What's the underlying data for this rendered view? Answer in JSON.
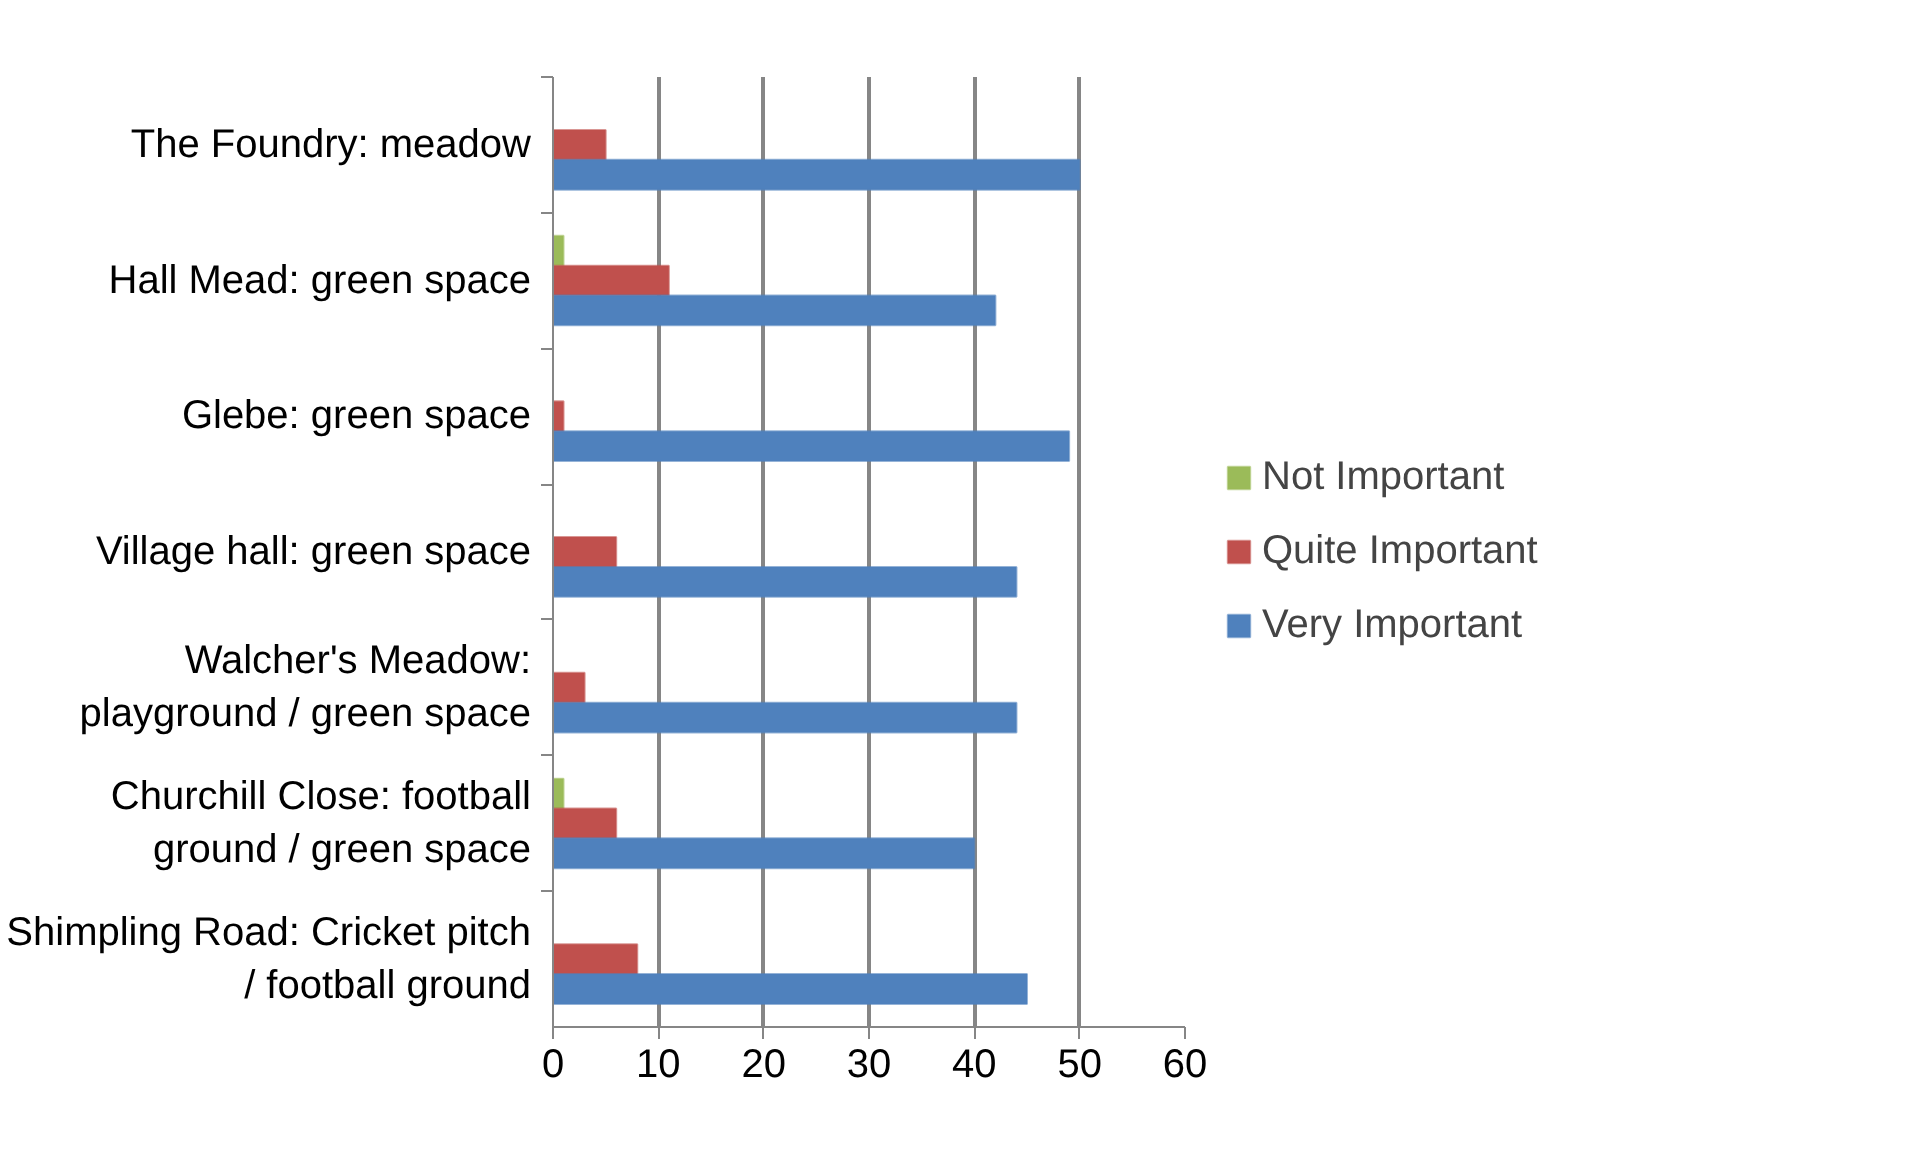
{
  "chart_data": {
    "type": "bar",
    "orientation": "horizontal",
    "categories": [
      "The Foundry: meadow",
      "Hall Mead: green space",
      "Glebe: green space",
      "Village hall: green space",
      "Walcher's Meadow:\nplayground / green space",
      "Churchill Close: football\nground / green space",
      "Shimpling Road: Cricket pitch\n/ football ground"
    ],
    "series": [
      {
        "name": "Not Important",
        "color": "#9bbb59",
        "values": [
          0,
          1,
          0,
          0,
          0,
          1,
          0
        ]
      },
      {
        "name": "Quite Important",
        "color": "#c0504d",
        "values": [
          5,
          11,
          1,
          6,
          3,
          6,
          8
        ]
      },
      {
        "name": "Very Important",
        "color": "#4f81bd",
        "values": [
          50,
          42,
          49,
          44,
          44,
          40,
          45
        ]
      }
    ],
    "xlim": [
      0,
      60
    ],
    "xticks": [
      0,
      10,
      20,
      30,
      40,
      50,
      60
    ],
    "grid": "x",
    "legend": "right"
  }
}
